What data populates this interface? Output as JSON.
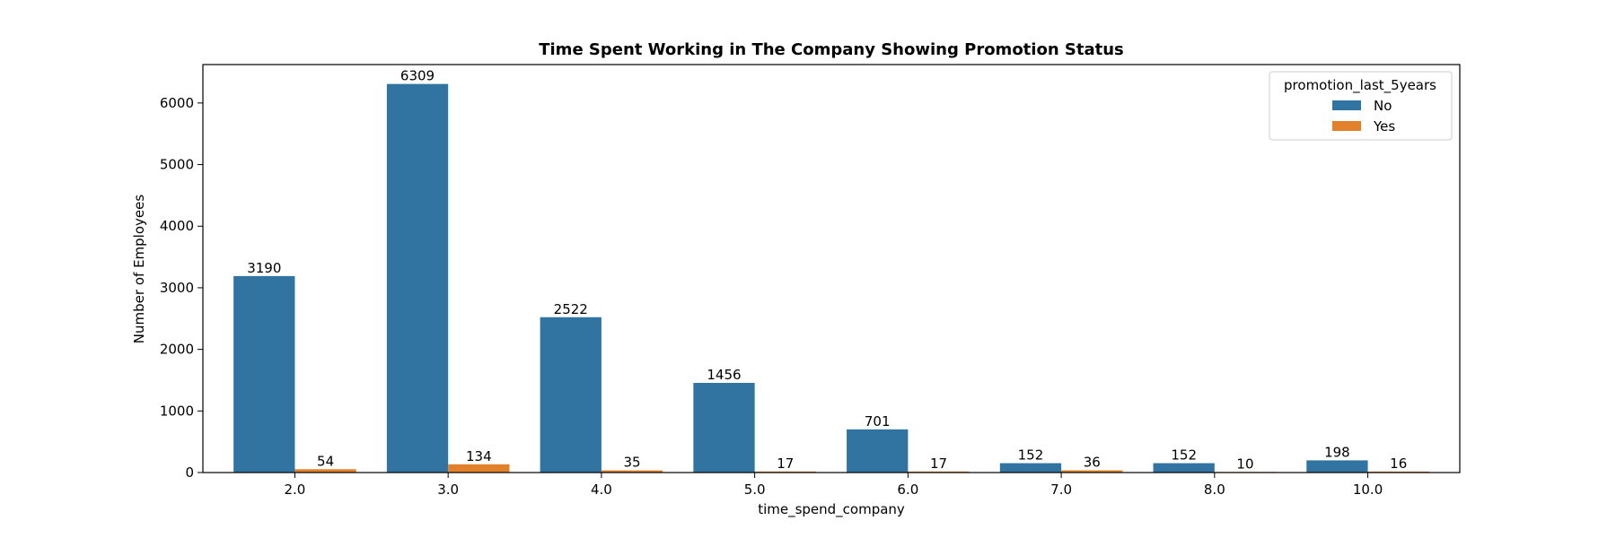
{
  "chart_data": {
    "type": "bar",
    "title": "Time Spent Working in The Company Showing Promotion Status",
    "xlabel": "time_spend_company",
    "ylabel": "Number of Employees",
    "categories": [
      "2.0",
      "3.0",
      "4.0",
      "5.0",
      "6.0",
      "7.0",
      "8.0",
      "10.0"
    ],
    "yticks": [
      0,
      1000,
      2000,
      3000,
      4000,
      5000,
      6000
    ],
    "ylim": [
      0,
      6624
    ],
    "grid": false,
    "legend": {
      "title": "promotion_last_5years",
      "placement": "top-right"
    },
    "series": [
      {
        "name": "No",
        "color": "#3274a1",
        "values": [
          3190,
          6309,
          2522,
          1456,
          701,
          152,
          152,
          198
        ]
      },
      {
        "name": "Yes",
        "color": "#e1812c",
        "values": [
          54,
          134,
          35,
          17,
          17,
          36,
          10,
          16
        ]
      }
    ]
  }
}
